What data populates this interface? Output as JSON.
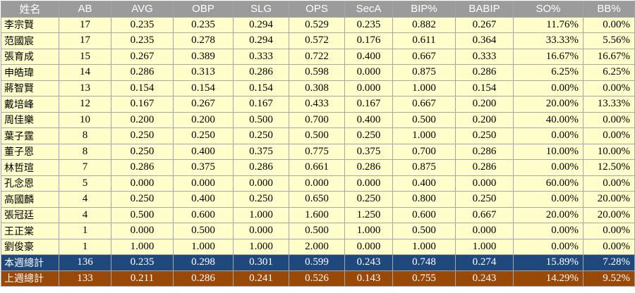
{
  "headers": [
    "姓名",
    "AB",
    "AVG",
    "OBP",
    "SLG",
    "OPS",
    "SecA",
    "BIP%",
    "BABIP",
    "SO%",
    "BB%"
  ],
  "rows": [
    [
      "李宗賢",
      "17",
      "0.235",
      "0.235",
      "0.294",
      "0.529",
      "0.235",
      "0.882",
      "0.267",
      "11.76%",
      "0.00%"
    ],
    [
      "范國宸",
      "17",
      "0.235",
      "0.278",
      "0.294",
      "0.572",
      "0.176",
      "0.611",
      "0.364",
      "33.33%",
      "5.56%"
    ],
    [
      "張育成",
      "15",
      "0.267",
      "0.389",
      "0.333",
      "0.722",
      "0.400",
      "0.667",
      "0.333",
      "16.67%",
      "16.67%"
    ],
    [
      "申皓瑋",
      "14",
      "0.286",
      "0.313",
      "0.286",
      "0.598",
      "0.000",
      "0.875",
      "0.286",
      "6.25%",
      "6.25%"
    ],
    [
      "蔣智賢",
      "13",
      "0.154",
      "0.154",
      "0.154",
      "0.308",
      "0.000",
      "1.000",
      "0.154",
      "0.00%",
      "0.00%"
    ],
    [
      "戴培峰",
      "12",
      "0.167",
      "0.267",
      "0.167",
      "0.433",
      "0.167",
      "0.667",
      "0.200",
      "20.00%",
      "13.33%"
    ],
    [
      "周佳樂",
      "10",
      "0.200",
      "0.200",
      "0.500",
      "0.700",
      "0.400",
      "0.500",
      "0.200",
      "40.00%",
      "0.00%"
    ],
    [
      "葉子霆",
      "8",
      "0.250",
      "0.250",
      "0.250",
      "0.500",
      "0.250",
      "1.000",
      "0.250",
      "0.00%",
      "0.00%"
    ],
    [
      "董子恩",
      "8",
      "0.250",
      "0.400",
      "0.375",
      "0.775",
      "0.375",
      "0.700",
      "0.286",
      "10.00%",
      "10.00%"
    ],
    [
      "林哲瑄",
      "7",
      "0.286",
      "0.375",
      "0.286",
      "0.661",
      "0.286",
      "0.875",
      "0.286",
      "0.00%",
      "12.50%"
    ],
    [
      "孔念恩",
      "5",
      "0.000",
      "0.000",
      "0.000",
      "0.000",
      "0.000",
      "0.400",
      "0.000",
      "60.00%",
      "0.00%"
    ],
    [
      "高國麟",
      "4",
      "0.250",
      "0.400",
      "0.250",
      "0.650",
      "0.250",
      "0.800",
      "0.250",
      "0.00%",
      "20.00%"
    ],
    [
      "張冠廷",
      "4",
      "0.500",
      "0.600",
      "1.000",
      "1.600",
      "1.250",
      "0.600",
      "0.667",
      "20.00%",
      "20.00%"
    ],
    [
      "王正棠",
      "1",
      "0.000",
      "0.500",
      "0.000",
      "0.500",
      "1.000",
      "0.500",
      "0.000",
      "0.00%",
      "0.00%"
    ],
    [
      "劉俊豪",
      "1",
      "1.000",
      "1.000",
      "1.000",
      "2.000",
      "0.000",
      "1.000",
      "1.000",
      "0.00%",
      "0.00%"
    ]
  ],
  "totals": [
    {
      "row": [
        "本週總計",
        "136",
        "0.235",
        "0.298",
        "0.301",
        "0.599",
        "0.243",
        "0.748",
        "0.274",
        "15.89%",
        "7.28%"
      ],
      "color": "#1f497d"
    },
    {
      "row": [
        "上週總計",
        "133",
        "0.211",
        "0.286",
        "0.241",
        "0.526",
        "0.143",
        "0.755",
        "0.243",
        "14.29%",
        "9.52%"
      ],
      "color": "#984807"
    }
  ]
}
